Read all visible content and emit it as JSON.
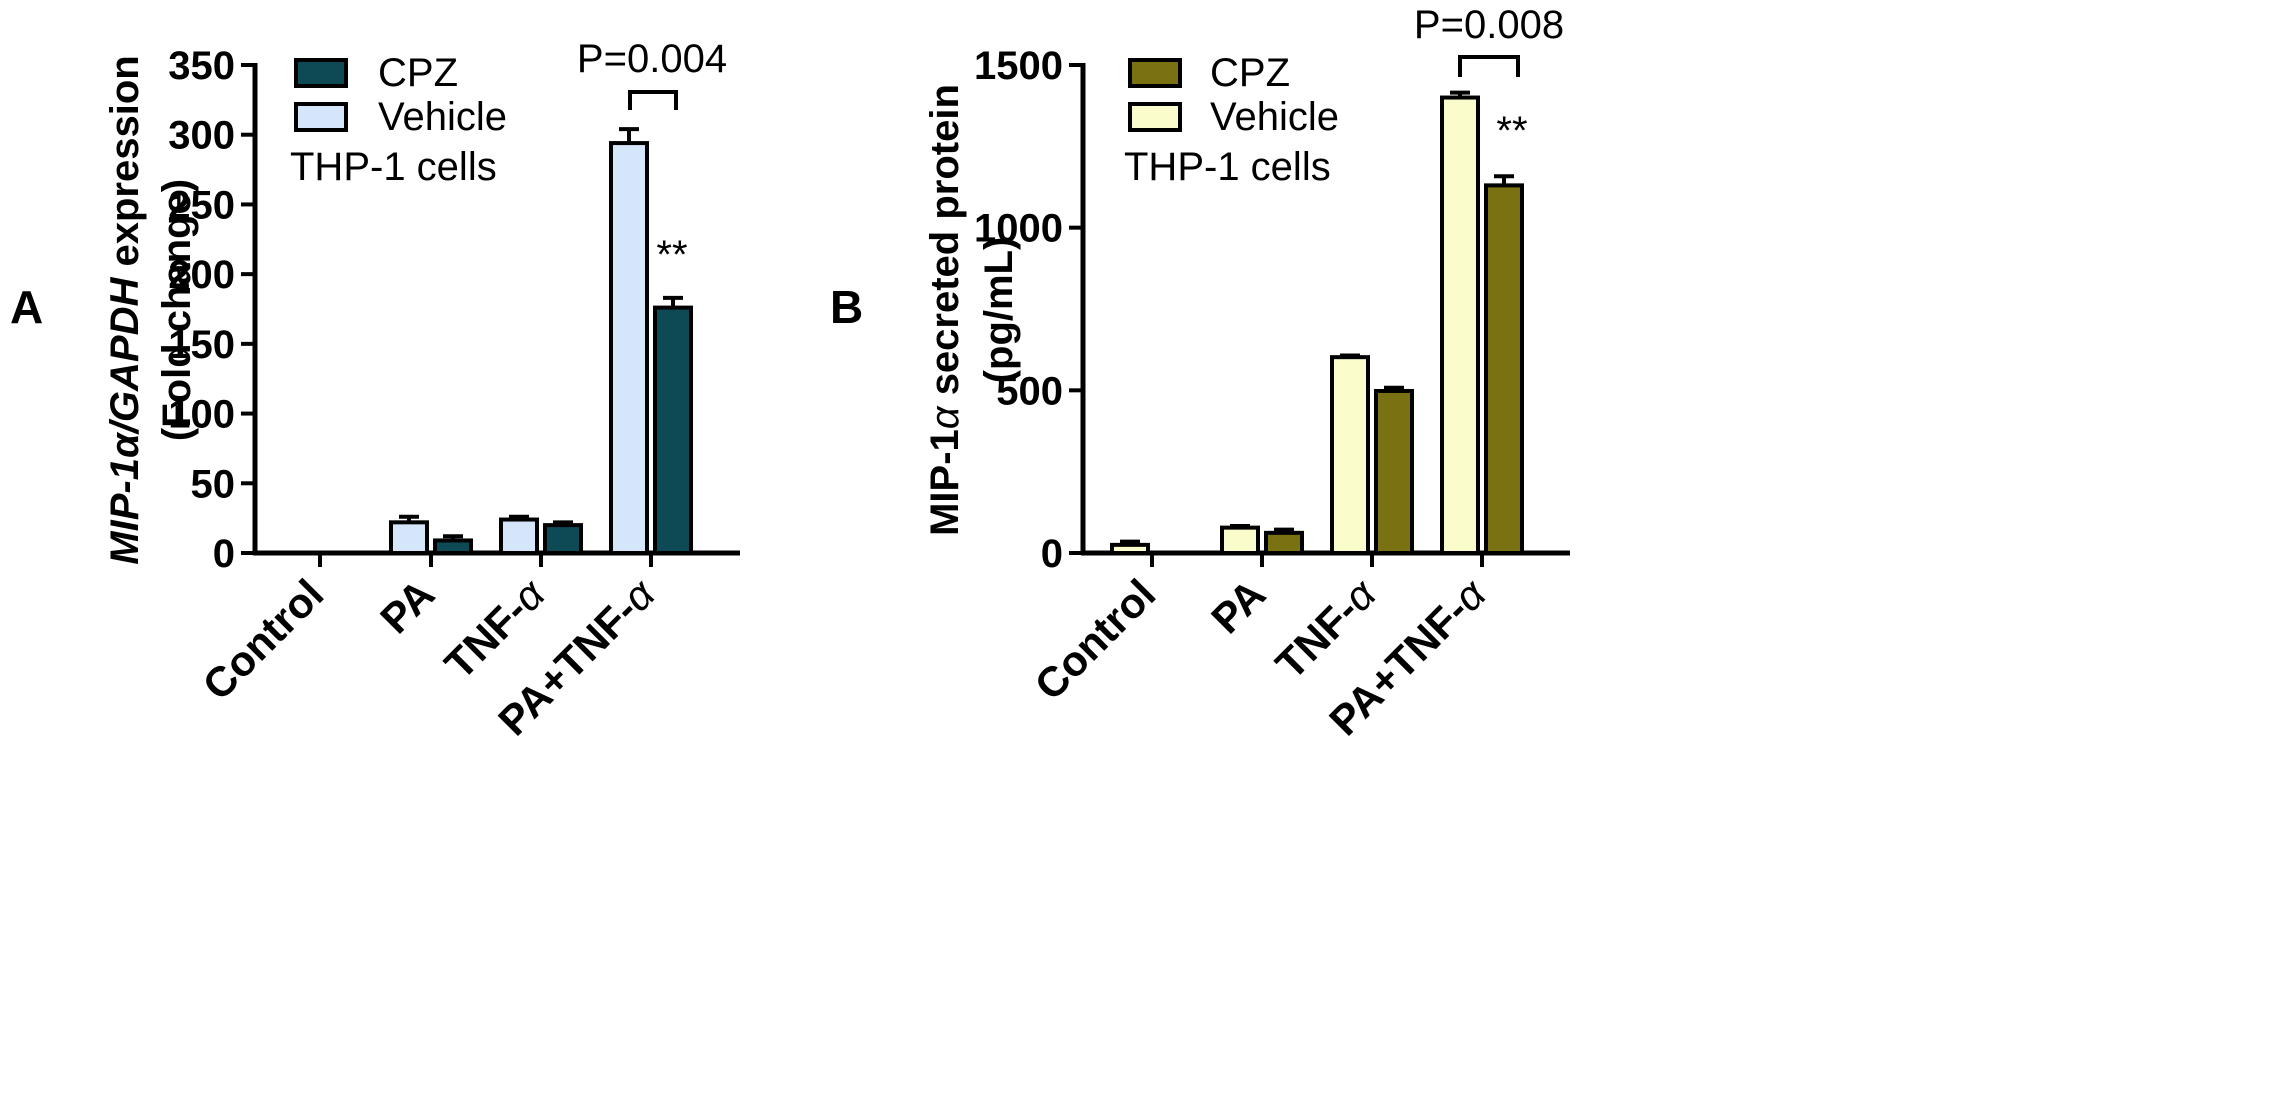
{
  "panels": [
    {
      "panel_label": "A",
      "ylabel_line1_parts": [
        "MIP-1",
        "α",
        "/",
        "GAPDH",
        " expression"
      ],
      "ylabel_line2": "(Fold change)",
      "legend": [
        {
          "label": "CPZ",
          "color": "#0e4a55"
        },
        {
          "label": "Vehicle",
          "color": "#d6e6fa"
        }
      ],
      "annotation": "THP-1 cells",
      "pvalue": "P=0.004",
      "significance": "**"
    },
    {
      "panel_label": "B",
      "ylabel_line1_parts": [
        "MIP-1",
        "α",
        " secreted protein"
      ],
      "ylabel_line2": "(pg/mL)",
      "legend": [
        {
          "label": "CPZ",
          "color": "#7a7112"
        },
        {
          "label": "Vehicle",
          "color": "#fbfccb"
        }
      ],
      "annotation": "THP-1 cells",
      "pvalue": "P=0.008",
      "significance": "**"
    }
  ],
  "chart_data": [
    {
      "type": "bar",
      "categories": [
        "Control",
        "PA",
        "TNF-α",
        "PA+TNF-α"
      ],
      "ylim": [
        0,
        350
      ],
      "yticks": [
        0,
        50,
        100,
        150,
        200,
        250,
        300,
        350
      ],
      "series": [
        {
          "name": "Vehicle",
          "values": [
            0,
            22,
            24,
            294
          ],
          "errors": [
            0,
            4,
            2,
            10
          ],
          "color": "#d6e6fa"
        },
        {
          "name": "CPZ",
          "values": [
            0,
            9,
            20,
            176
          ],
          "errors": [
            0,
            3,
            2,
            7
          ],
          "color": "#0e4a55"
        }
      ],
      "grid": false,
      "legend_position": "top-left"
    },
    {
      "type": "bar",
      "categories": [
        "Control",
        "PA",
        "TNF-α",
        "PA+TNF-α"
      ],
      "ylim": [
        0,
        1500
      ],
      "yticks": [
        0,
        500,
        1000,
        1500
      ],
      "series": [
        {
          "name": "Vehicle",
          "values": [
            25,
            78,
            602,
            1400
          ],
          "errors": [
            10,
            5,
            5,
            15
          ],
          "color": "#fbfccb"
        },
        {
          "name": "CPZ",
          "values": [
            0,
            62,
            498,
            1130
          ],
          "errors": [
            0,
            10,
            10,
            28
          ],
          "color": "#7a7112"
        }
      ],
      "grid": false,
      "legend_position": "top-left"
    }
  ]
}
